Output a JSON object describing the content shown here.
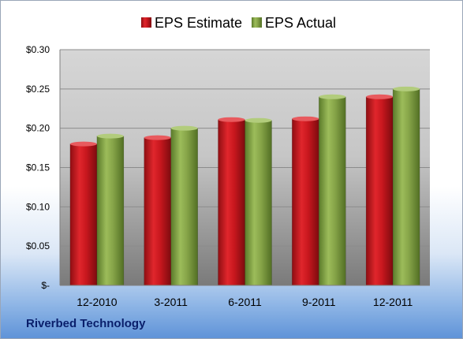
{
  "company": "Riverbed Technology",
  "chart_data": {
    "type": "bar",
    "categories": [
      "12-2010",
      "3-2011",
      "6-2011",
      "9-2011",
      "12-2011"
    ],
    "series": [
      {
        "name": "EPS Estimate",
        "values": [
          0.18,
          0.188,
          0.211,
          0.212,
          0.24
        ],
        "color": "#c8171e"
      },
      {
        "name": "EPS Actual",
        "values": [
          0.19,
          0.2,
          0.21,
          0.24,
          0.25
        ],
        "color": "#8aa84a"
      }
    ],
    "ylim": [
      0,
      0.3
    ],
    "yticks": [
      0,
      0.05,
      0.1,
      0.15,
      0.2,
      0.25,
      0.3
    ],
    "ytick_labels": [
      "$-",
      "$0.05",
      "$0.10",
      "$0.15",
      "$0.20",
      "$0.25",
      "$0.30"
    ],
    "grid": true,
    "legend_position": "top"
  }
}
